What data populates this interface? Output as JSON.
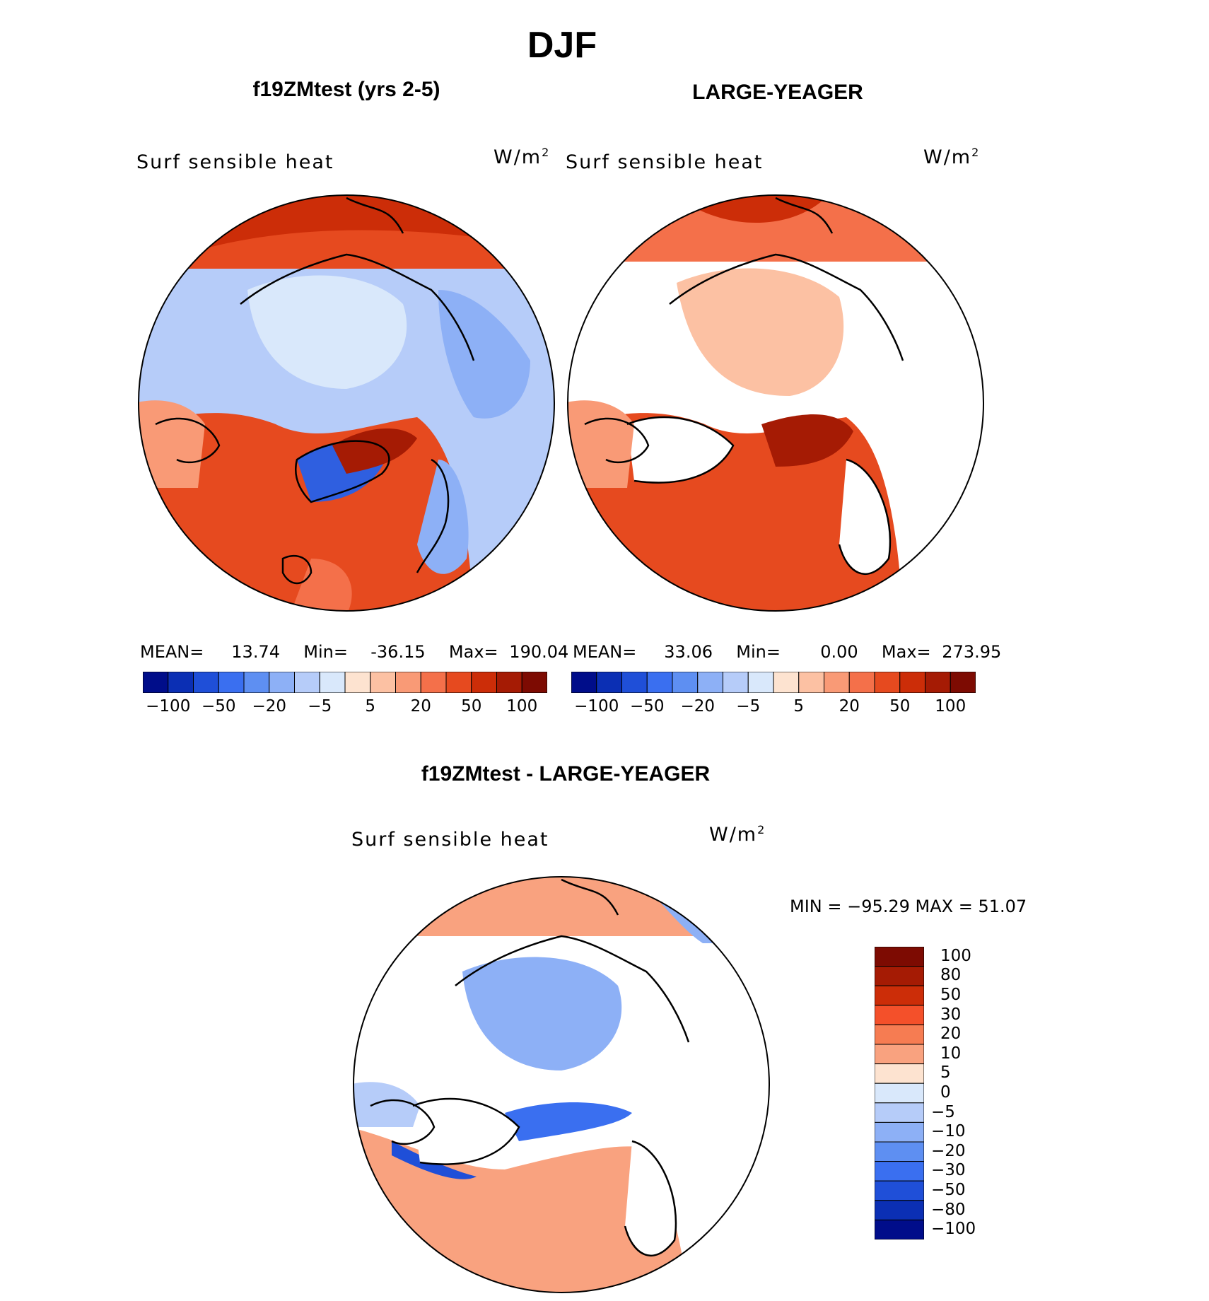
{
  "figure": {
    "title": "DJF",
    "panel1_title": "f19ZMtest (yrs 2-5)",
    "panel2_title": "LARGE-YEAGER",
    "diff_title": "f19ZMtest - LARGE-YEAGER",
    "variable_label": "Surf sensible heat",
    "units_base": "W/m",
    "units_exp": "2"
  },
  "chart_data": [
    {
      "type": "heatmap",
      "name": "f19ZMtest (yrs 2-5)",
      "projection": "north-polar-stereographic",
      "variable": "Surf sensible heat",
      "units": "W/m2",
      "stats": {
        "mean_label": "MEAN=",
        "mean": "13.74",
        "min_label": "Min=",
        "min": "-36.15",
        "max_label": "Max=",
        "max": "190.04"
      },
      "colorbar": {
        "orientation": "horizontal",
        "tick_labels": [
          "-100",
          "-50",
          "-20",
          "-5",
          "5",
          "20",
          "50",
          "100"
        ],
        "colors": [
          "#000d8a",
          "#0b2fb4",
          "#1f4fd8",
          "#3a6ff0",
          "#5e8ff2",
          "#8db0f6",
          "#b6ccf9",
          "#d9e8fb",
          "#fde3d0",
          "#fcc1a3",
          "#f99a76",
          "#f4704a",
          "#e64a1f",
          "#cc2d08",
          "#a51b04",
          "#7d0b02"
        ]
      }
    },
    {
      "type": "heatmap",
      "name": "LARGE-YEAGER",
      "projection": "north-polar-stereographic",
      "variable": "Surf sensible heat",
      "units": "W/m2",
      "stats": {
        "mean_label": "MEAN=",
        "mean": "33.06",
        "min_label": "Min=",
        "min": "0.00",
        "max_label": "Max=",
        "max": "273.95"
      },
      "colorbar": {
        "orientation": "horizontal",
        "tick_labels": [
          "-100",
          "-50",
          "-20",
          "-5",
          "5",
          "20",
          "50",
          "100"
        ],
        "colors": [
          "#000d8a",
          "#0b2fb4",
          "#1f4fd8",
          "#3a6ff0",
          "#5e8ff2",
          "#8db0f6",
          "#b6ccf9",
          "#d9e8fb",
          "#fde3d0",
          "#fcc1a3",
          "#f99a76",
          "#f4704a",
          "#e64a1f",
          "#cc2d08",
          "#a51b04",
          "#7d0b02"
        ]
      }
    },
    {
      "type": "heatmap",
      "name": "f19ZMtest - LARGE-YEAGER",
      "projection": "north-polar-stereographic",
      "variable": "Surf sensible heat",
      "units": "W/m2",
      "stats": {
        "text": "MIN = −95.29 MAX =   51.07",
        "min": -95.29,
        "max": 51.07
      },
      "colorbar": {
        "orientation": "vertical",
        "tick_labels_top_to_bottom": [
          "100",
          "80",
          "50",
          "30",
          "20",
          "10",
          "5",
          "0",
          "−5",
          "−10",
          "−20",
          "−30",
          "−50",
          "−80",
          "−100"
        ],
        "colors_top_to_bottom": [
          "#7d0b02",
          "#a51b04",
          "#cc2d08",
          "#f4502a",
          "#f67c52",
          "#f9a27f",
          "#fde3d0",
          "#d9e8fb",
          "#b6ccf9",
          "#8db0f6",
          "#5e8ff2",
          "#3a6ff0",
          "#1f4fd8",
          "#0b2fb4",
          "#000d8a"
        ]
      }
    }
  ]
}
